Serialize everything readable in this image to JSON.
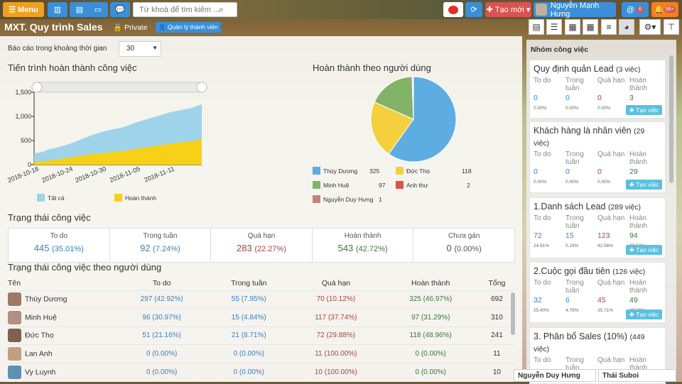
{
  "header": {
    "menu": "Menu",
    "search_placeholder": "Từ khoá để tìm kiếm ...",
    "create_new": "Tạo mới",
    "user": "Nguyễn Mạnh Hưng",
    "notif_at": "6",
    "notif_bell": "99+"
  },
  "title": {
    "name": "MXT. Quy trình Sales",
    "privacy": "Private",
    "manage": "Quản lý thành viên"
  },
  "report": {
    "label": "Báo cáo trong khoảng thời gian",
    "range": "30"
  },
  "progress": {
    "title": "Tiến trình hoàn thành công việc",
    "y_ticks": [
      "1,500",
      "1,000",
      "500",
      "0"
    ],
    "x_ticks": [
      "2018-10-18",
      "2018-10-24",
      "2018-10-30",
      "2018-11-05",
      "2018-11-11"
    ],
    "legend_all": "Tất cả",
    "legend_done": "Hoàn thành"
  },
  "pie": {
    "title": "Hoàn thành theo người dùng",
    "legend": [
      {
        "name": "Thùy Dương",
        "value": "325",
        "color": "#5dade2"
      },
      {
        "name": "Đức Thọ",
        "value": "118",
        "color": "#f4d03f"
      },
      {
        "name": "Minh Huệ",
        "value": "97",
        "color": "#82b366"
      },
      {
        "name": "Anh thư",
        "value": "2",
        "color": "#d9534f"
      },
      {
        "name": "Nguyễn Duy Hưng",
        "value": "1",
        "color": "#c98080"
      }
    ]
  },
  "status": {
    "title": "Trạng thái công việc",
    "items": [
      {
        "label": "To do",
        "value": "445",
        "pct": "(35.01%)",
        "color": "#3a7fc1"
      },
      {
        "label": "Trong tuần",
        "value": "92",
        "pct": "(7.24%)",
        "color": "#3a7fc1"
      },
      {
        "label": "Quá hạn",
        "value": "283",
        "pct": "(22.27%)",
        "color": "#a94442"
      },
      {
        "label": "Hoàn thành",
        "value": "543",
        "pct": "(42.72%)",
        "color": "#3c763d"
      },
      {
        "label": "Chưa gán",
        "value": "0",
        "pct": "(0.00%)",
        "color": "#555"
      }
    ]
  },
  "users": {
    "title": "Trạng thái công việc theo người dùng",
    "headers": [
      "Tên",
      "To do",
      "Trong tuần",
      "Quá hạn",
      "Hoàn thành",
      "Tổng"
    ],
    "rows": [
      {
        "name": "Thùy Dương",
        "todo": "297",
        "todo_p": "(42.92%)",
        "week": "55",
        "week_p": "(7.95%)",
        "over": "70",
        "over_p": "(10.12%)",
        "done": "325",
        "done_p": "(46.97%)",
        "total": "692"
      },
      {
        "name": "Minh Huệ",
        "todo": "96",
        "todo_p": "(30.97%)",
        "week": "15",
        "week_p": "(4.84%)",
        "over": "117",
        "over_p": "(37.74%)",
        "done": "97",
        "done_p": "(31.29%)",
        "total": "310"
      },
      {
        "name": "Đức Thọ",
        "todo": "51",
        "todo_p": "(21.16%)",
        "week": "21",
        "week_p": "(8.71%)",
        "over": "72",
        "over_p": "(29.88%)",
        "done": "118",
        "done_p": "(48.96%)",
        "total": "241"
      },
      {
        "name": "Lan Anh",
        "todo": "0",
        "todo_p": "(0.00%)",
        "week": "0",
        "week_p": "(0.00%)",
        "over": "11",
        "over_p": "(100.00%)",
        "done": "0",
        "done_p": "(0.00%)",
        "total": "11"
      },
      {
        "name": "Vy Luynh",
        "todo": "0",
        "todo_p": "(0.00%)",
        "week": "0",
        "week_p": "(0.00%)",
        "over": "10",
        "over_p": "(100.00%)",
        "done": "0",
        "done_p": "(0.00%)",
        "total": "10"
      }
    ]
  },
  "side": {
    "title": "Nhóm công việc",
    "col_labels": [
      "To do",
      "Trong tuần",
      "Quá hạn",
      "Hoàn thành"
    ],
    "add_label": "Tạo việc",
    "cards": [
      {
        "name": "Quy định quản Lead",
        "count": "(3 việc)",
        "vals": [
          "0",
          "0",
          "0",
          "3"
        ],
        "pcts": [
          "0.00%",
          "0.00%",
          "0.00%",
          "100.00%"
        ]
      },
      {
        "name": "Khách hàng là nhân viên",
        "count": "(29 việc)",
        "vals": [
          "0",
          "0",
          "0",
          "29"
        ],
        "pcts": [
          "0.00%",
          "0.00%",
          "0.00%",
          "100.00%"
        ]
      },
      {
        "name": "1.Danh sách Lead",
        "count": "(289 việc)",
        "vals": [
          "72",
          "15",
          "123",
          "94"
        ],
        "pcts": [
          "24.91%",
          "5.19%",
          "42.56%",
          "32.53%"
        ]
      },
      {
        "name": "2.Cuộc gọi đầu tiên",
        "count": "(126 việc)",
        "vals": [
          "32",
          "6",
          "45",
          "49"
        ],
        "pcts": [
          "25.40%",
          "4.76%",
          "35.71%",
          "38.89%"
        ]
      },
      {
        "name": "3. Phân bổ Sales (10%)",
        "count": "(449 việc)",
        "vals": [
          "",
          "",
          "",
          ""
        ],
        "pcts": [
          "",
          "",
          "",
          ""
        ]
      }
    ]
  },
  "chat": {
    "a": "Nguyễn Duy Hưng",
    "b": "Thái Suboi"
  }
}
